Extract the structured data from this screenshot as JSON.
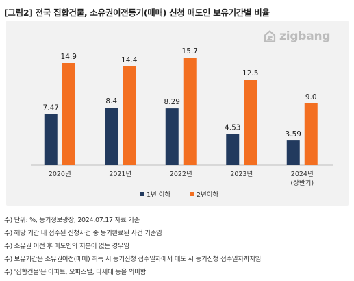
{
  "figure": {
    "title": "[그림2] 전국 집합건물, 소유권이전등기(매매) 신청 매도인 보유기간별 비율",
    "logo_text": "zigbang",
    "logo_icon": "zigbang-logo-icon"
  },
  "chart_data": {
    "type": "bar",
    "categories": [
      "2020년",
      "2021년",
      "2022년",
      "2023년",
      "2024년\n(상반기)"
    ],
    "category_lines": [
      [
        "2020년"
      ],
      [
        "2021년"
      ],
      [
        "2022년"
      ],
      [
        "2023년"
      ],
      [
        "2024년",
        "(상반기)"
      ]
    ],
    "series": [
      {
        "name": "1년 이하",
        "color": "#223a5e",
        "values": [
          7.47,
          8.4,
          8.29,
          4.53,
          3.59
        ],
        "labels": [
          "7.47",
          "8.4",
          "8.29",
          "4.53",
          "3.59"
        ]
      },
      {
        "name": "2년이하",
        "color": "#f36f21",
        "values": [
          14.9,
          14.4,
          15.7,
          12.5,
          9.0
        ],
        "labels": [
          "14.9",
          "14.4",
          "15.7",
          "12.5",
          "9.0"
        ]
      }
    ],
    "ylim": [
      0,
      20
    ],
    "grid": false,
    "legend_position": "bottom-center"
  },
  "notes": [
    "주) 단위: %,  등기정보광장, 2024.07.17 자료 기준",
    "주) 해당 기간 내 접수된 신청사건 중 등기완료된 사건 기준임",
    "주) 소유권 이전 후 매도인의 지분이 없는 경우임",
    "주) 보유기간은 소유권이전(매매) 취득 시 등기신청 접수일자에서 매도 시 등기신청 접수일자까지임",
    "주) '집합건물'은 아파트, 오피스텔, 다세대 등을 의미함"
  ]
}
